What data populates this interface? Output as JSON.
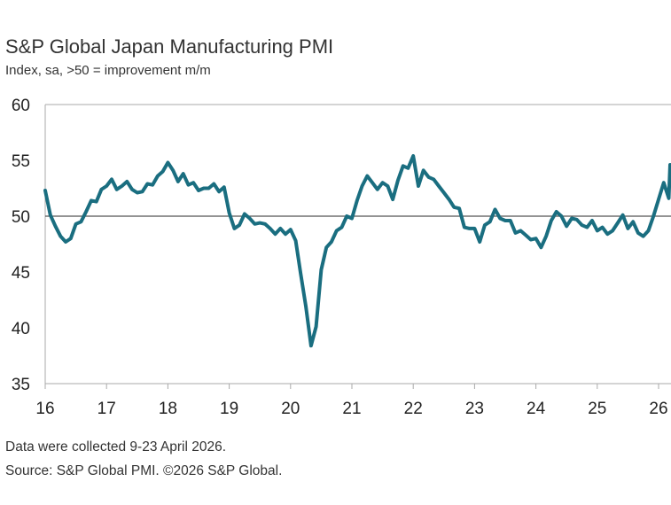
{
  "title": "S&P Global Japan Manufacturing PMI",
  "subtitle": "Index, sa, >50 = improvement m/m",
  "footnotes": {
    "collected": "Data were collected 9-23 April 2026.",
    "source": "Source: S&P Global PMI. ©2026 S&P Global."
  },
  "chart_data": {
    "type": "line",
    "title": "S&P Global Japan Manufacturing PMI",
    "subtitle": "Index, sa, >50 = improvement m/m",
    "xlabel": "",
    "ylabel": "",
    "xlim": [
      "2016-01",
      "2026-04"
    ],
    "ylim": [
      35,
      60
    ],
    "yticks": [
      35,
      40,
      45,
      50,
      55,
      60
    ],
    "xtick_labels": [
      "16",
      "17",
      "18",
      "19",
      "20",
      "21",
      "22",
      "23",
      "24",
      "25",
      "26"
    ],
    "reference_line": 50,
    "grid": false,
    "legend": "none",
    "line_color": "#1a6e80",
    "x": [
      "2016-01",
      "2016-02",
      "2016-03",
      "2016-04",
      "2016-05",
      "2016-06",
      "2016-07",
      "2016-08",
      "2016-09",
      "2016-10",
      "2016-11",
      "2016-12",
      "2017-01",
      "2017-02",
      "2017-03",
      "2017-04",
      "2017-05",
      "2017-06",
      "2017-07",
      "2017-08",
      "2017-09",
      "2017-10",
      "2017-11",
      "2017-12",
      "2018-01",
      "2018-02",
      "2018-03",
      "2018-04",
      "2018-05",
      "2018-06",
      "2018-07",
      "2018-08",
      "2018-09",
      "2018-10",
      "2018-11",
      "2018-12",
      "2019-01",
      "2019-02",
      "2019-03",
      "2019-04",
      "2019-05",
      "2019-06",
      "2019-07",
      "2019-08",
      "2019-09",
      "2019-10",
      "2019-11",
      "2019-12",
      "2020-01",
      "2020-02",
      "2020-03",
      "2020-04",
      "2020-05",
      "2020-06",
      "2020-07",
      "2020-08",
      "2020-09",
      "2020-10",
      "2020-11",
      "2020-12",
      "2021-01",
      "2021-02",
      "2021-03",
      "2021-04",
      "2021-05",
      "2021-06",
      "2021-07",
      "2021-08",
      "2021-09",
      "2021-10",
      "2021-11",
      "2021-12",
      "2022-01",
      "2022-02",
      "2022-03",
      "2022-04",
      "2022-05",
      "2022-06",
      "2022-07",
      "2022-08",
      "2022-09",
      "2022-10",
      "2022-11",
      "2022-12",
      "2023-01",
      "2023-02",
      "2023-03",
      "2023-04",
      "2023-05",
      "2023-06",
      "2023-07",
      "2023-08",
      "2023-09",
      "2023-10",
      "2023-11",
      "2023-12",
      "2024-01",
      "2024-02",
      "2024-03",
      "2024-04",
      "2024-05",
      "2024-06",
      "2024-07",
      "2024-08",
      "2024-09",
      "2024-10",
      "2024-11",
      "2024-12",
      "2025-01",
      "2025-02",
      "2025-03",
      "2025-04",
      "2025-05",
      "2025-06",
      "2025-07",
      "2025-08",
      "2025-09",
      "2025-10",
      "2025-11",
      "2025-12",
      "2026-01",
      "2026-02",
      "2026-03",
      "2026-04"
    ],
    "y": [
      52.3,
      50.1,
      49.1,
      48.2,
      47.7,
      48.0,
      49.3,
      49.5,
      50.4,
      51.4,
      51.3,
      52.4,
      52.7,
      53.3,
      52.4,
      52.7,
      53.1,
      52.4,
      52.1,
      52.2,
      52.9,
      52.8,
      53.6,
      54.0,
      54.8,
      54.1,
      53.1,
      53.8,
      52.8,
      53.0,
      52.3,
      52.5,
      52.5,
      52.9,
      52.2,
      52.6,
      50.3,
      48.9,
      49.2,
      50.2,
      49.8,
      49.3,
      49.4,
      49.3,
      48.9,
      48.4,
      48.9,
      48.4,
      48.8,
      47.8,
      44.8,
      41.9,
      38.4,
      40.1,
      45.2,
      47.2,
      47.7,
      48.7,
      49.0,
      50.0,
      49.8,
      51.4,
      52.7,
      53.6,
      53.0,
      52.4,
      53.0,
      52.7,
      51.5,
      53.2,
      54.5,
      54.3,
      55.4,
      52.7,
      54.1,
      53.5,
      53.3,
      52.7,
      52.1,
      51.5,
      50.8,
      50.7,
      49.0,
      48.9,
      48.9,
      47.7,
      49.2,
      49.5,
      50.6,
      49.8,
      49.6,
      49.6,
      48.5,
      48.7,
      48.3,
      47.9,
      48.0,
      47.2,
      48.2,
      49.6,
      50.4,
      50.0,
      49.1,
      49.8,
      49.7,
      49.2,
      49.0,
      49.6,
      48.7,
      49.0,
      48.4,
      48.7,
      49.4,
      50.1,
      48.9,
      49.5,
      48.5,
      48.2,
      48.7,
      50.0,
      51.5,
      53.0,
      51.6,
      54.6
    ]
  }
}
